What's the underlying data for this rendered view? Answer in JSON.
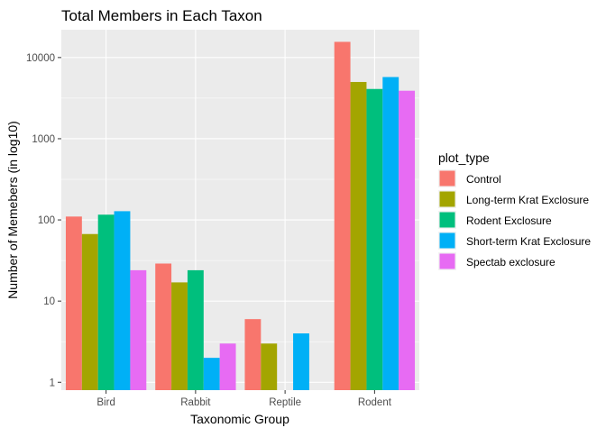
{
  "chart_data": {
    "type": "bar",
    "title": "Total Members in Each Taxon",
    "xlabel": "Taxonomic Group",
    "ylabel": "Number of Memebers (in log10)",
    "y_scale": "log10",
    "ylim": [
      0.8,
      22000
    ],
    "y_ticks": [
      1,
      10,
      100,
      1000,
      10000
    ],
    "y_tick_labels": [
      "1",
      "10",
      "100",
      "1000",
      "10000"
    ],
    "grid": true,
    "legend_title": "plot_type",
    "legend_position": "right",
    "categories": [
      "Bird",
      "Rabbit",
      "Reptile",
      "Rodent"
    ],
    "series": [
      {
        "name": "Control",
        "color": "#F8766D",
        "values": [
          110,
          29,
          6,
          15600
        ]
      },
      {
        "name": "Long-term Krat Exclosure",
        "color": "#A3A500",
        "values": [
          67,
          17,
          3,
          5000
        ]
      },
      {
        "name": "Rodent Exclosure",
        "color": "#00BF7D",
        "values": [
          116,
          24,
          null,
          4100
        ]
      },
      {
        "name": "Short-term Krat Exclosure",
        "color": "#00B0F6",
        "values": [
          128,
          2,
          4,
          5750
        ]
      },
      {
        "name": "Spectab exclosure",
        "color": "#E76BF3",
        "values": [
          24,
          3,
          null,
          3900
        ]
      }
    ]
  }
}
